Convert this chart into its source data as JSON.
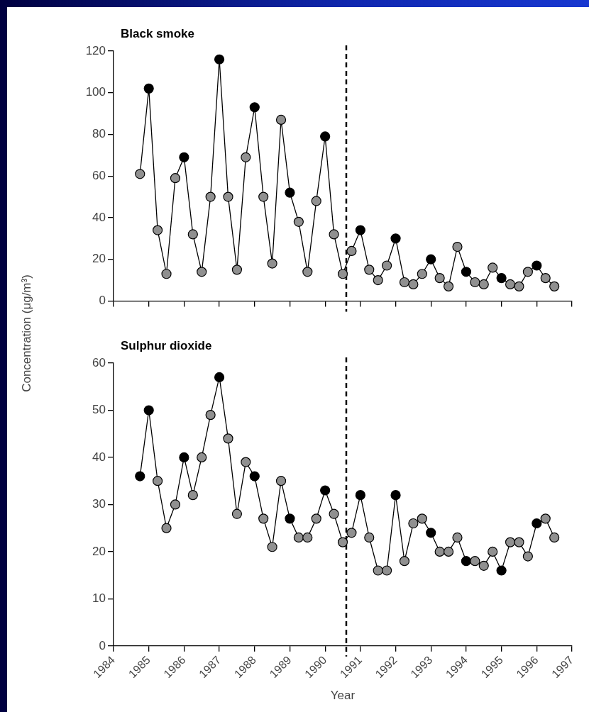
{
  "chart_data": [
    {
      "type": "line",
      "title": "Black smoke",
      "ylabel": "Concentration (μg/m³)",
      "x": [
        1984.75,
        1985,
        1985.25,
        1985.5,
        1985.75,
        1986,
        1986.25,
        1986.5,
        1986.75,
        1987,
        1987.25,
        1987.5,
        1987.75,
        1988,
        1988.25,
        1988.5,
        1988.75,
        1989,
        1989.25,
        1989.5,
        1989.75,
        1990,
        1990.25,
        1990.5,
        1990.75,
        1991,
        1991.25,
        1991.5,
        1991.75,
        1992,
        1992.25,
        1992.5,
        1992.75,
        1993,
        1993.25,
        1993.5,
        1993.75,
        1994,
        1994.25,
        1994.5,
        1994.75,
        1995,
        1995.25,
        1995.5,
        1995.75,
        1996,
        1996.25,
        1996.5
      ],
      "series": [
        {
          "color": "#000000",
          "colors": [
            "#909090",
            "#000000",
            "#909090",
            "#909090",
            "#909090",
            "#000000",
            "#909090",
            "#909090",
            "#909090",
            "#000000",
            "#909090",
            "#909090",
            "#909090",
            "#000000",
            "#909090",
            "#909090",
            "#909090",
            "#000000",
            "#909090",
            "#909090",
            "#909090",
            "#000000",
            "#909090",
            "#909090",
            "#909090",
            "#000000",
            "#909090",
            "#909090",
            "#909090",
            "#000000",
            "#909090",
            "#909090",
            "#909090",
            "#000000",
            "#909090",
            "#909090",
            "#909090",
            "#000000",
            "#909090",
            "#909090",
            "#909090",
            "#000000",
            "#909090",
            "#909090",
            "#909090",
            "#000000",
            "#909090",
            "#909090"
          ],
          "values": [
            61,
            102,
            34,
            13,
            59,
            69,
            32,
            14,
            50,
            116,
            50,
            15,
            69,
            93,
            50,
            18,
            87,
            52,
            38,
            14,
            48,
            79,
            32,
            13,
            24,
            34,
            15,
            10,
            17,
            30,
            9,
            8,
            13,
            20,
            11,
            7,
            26,
            14,
            9,
            8,
            16,
            11,
            8,
            7,
            14,
            17,
            11,
            7
          ]
        }
      ],
      "xlim": [
        1984,
        1997
      ],
      "xticks": [
        1984,
        1985,
        1986,
        1987,
        1988,
        1989,
        1990,
        1991,
        1992,
        1993,
        1994,
        1995,
        1996,
        1997
      ],
      "ylim": [
        0,
        120
      ],
      "yticks": [
        0,
        20,
        40,
        60,
        80,
        100,
        120
      ],
      "grid": false,
      "marker": "circle",
      "tick_labels": "y",
      "ref_lines": [
        {
          "axis": "x",
          "value": 1990.6,
          "color": "#000000",
          "line_style": "dashed"
        }
      ]
    },
    {
      "type": "line",
      "title": "Sulphur dioxide",
      "xlabel": "Year",
      "x": [
        1984.75,
        1985,
        1985.25,
        1985.5,
        1985.75,
        1986,
        1986.25,
        1986.5,
        1986.75,
        1987,
        1987.25,
        1987.5,
        1987.75,
        1988,
        1988.25,
        1988.5,
        1988.75,
        1989,
        1989.25,
        1989.5,
        1989.75,
        1990,
        1990.25,
        1990.5,
        1990.75,
        1991,
        1991.25,
        1991.5,
        1991.75,
        1992,
        1992.25,
        1992.5,
        1992.75,
        1993,
        1993.25,
        1993.5,
        1993.75,
        1994,
        1994.25,
        1994.5,
        1994.75,
        1995,
        1995.25,
        1995.5,
        1995.75,
        1996,
        1996.25,
        1996.5
      ],
      "series": [
        {
          "color": "#000000",
          "colors": [
            "#000000",
            "#000000",
            "#909090",
            "#909090",
            "#909090",
            "#000000",
            "#909090",
            "#909090",
            "#909090",
            "#000000",
            "#909090",
            "#909090",
            "#909090",
            "#000000",
            "#909090",
            "#909090",
            "#909090",
            "#000000",
            "#909090",
            "#909090",
            "#909090",
            "#000000",
            "#909090",
            "#909090",
            "#909090",
            "#000000",
            "#909090",
            "#909090",
            "#909090",
            "#000000",
            "#909090",
            "#909090",
            "#909090",
            "#000000",
            "#909090",
            "#909090",
            "#909090",
            "#000000",
            "#909090",
            "#909090",
            "#909090",
            "#000000",
            "#909090",
            "#909090",
            "#909090",
            "#000000",
            "#909090",
            "#909090"
          ],
          "values": [
            36,
            50,
            35,
            25,
            30,
            40,
            32,
            40,
            49,
            57,
            44,
            28,
            39,
            36,
            27,
            21,
            35,
            27,
            23,
            23,
            27,
            33,
            28,
            22,
            24,
            32,
            23,
            16,
            16,
            32,
            18,
            26,
            27,
            24,
            20,
            20,
            23,
            18,
            18,
            17,
            20,
            16,
            22,
            22,
            19,
            26,
            27,
            23
          ]
        }
      ],
      "xlim": [
        1984,
        1997
      ],
      "xticks": [
        1984,
        1985,
        1986,
        1987,
        1988,
        1989,
        1990,
        1991,
        1992,
        1993,
        1994,
        1995,
        1996,
        1997
      ],
      "ylim": [
        0,
        60
      ],
      "yticks": [
        0,
        10,
        20,
        30,
        40,
        50,
        60
      ],
      "grid": false,
      "marker": "circle",
      "ref_lines": [
        {
          "axis": "x",
          "value": 1990.6,
          "color": "#000000",
          "line_style": "dashed"
        }
      ]
    }
  ]
}
